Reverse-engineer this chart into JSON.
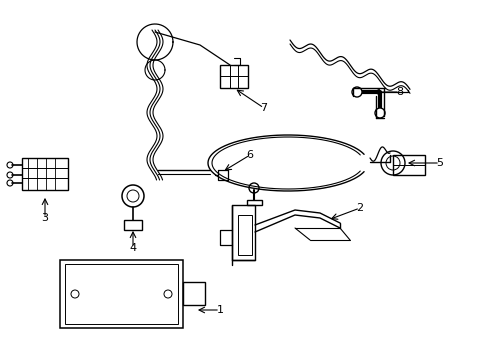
{
  "background_color": "#ffffff",
  "line_color": "#000000",
  "lw": 1.0,
  "figsize": [
    4.89,
    3.6
  ],
  "dpi": 100,
  "xlim": [
    0,
    489
  ],
  "ylim": [
    0,
    360
  ]
}
